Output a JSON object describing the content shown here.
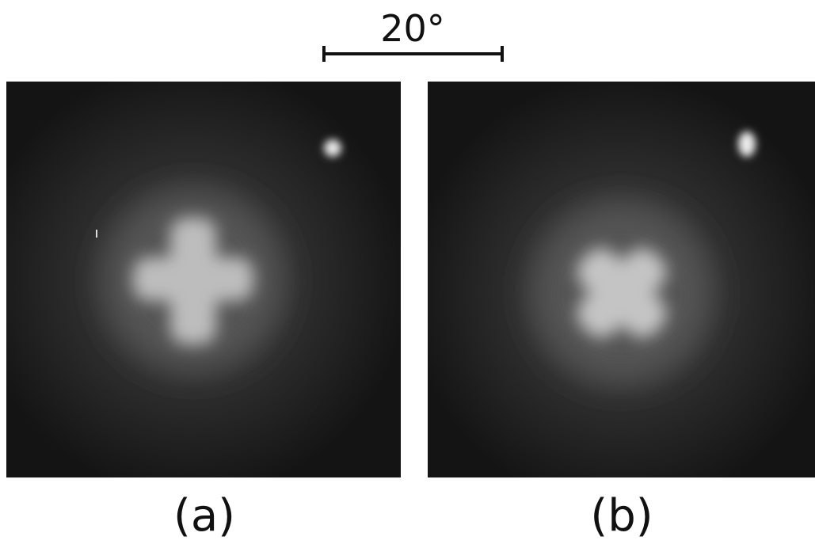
{
  "scale_bar": {
    "label": "20°"
  },
  "panels": [
    {
      "label": "(a)"
    },
    {
      "label": "(b)"
    }
  ]
}
